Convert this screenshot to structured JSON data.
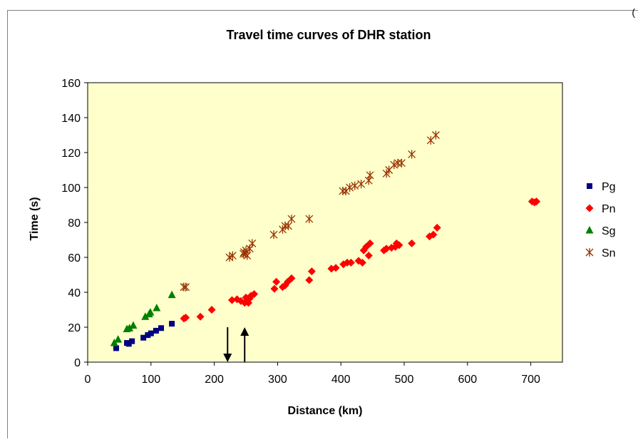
{
  "corner_mark": "(",
  "chart_data": {
    "type": "scatter",
    "title": "Travel time curves of DHR station",
    "xlabel": "Distance (km)",
    "ylabel": "Time (s)",
    "xlim": [
      0,
      750
    ],
    "ylim": [
      0,
      160
    ],
    "xticks": [
      0,
      100,
      200,
      300,
      400,
      500,
      600,
      700
    ],
    "yticks": [
      0,
      20,
      40,
      60,
      80,
      100,
      120,
      140,
      160
    ],
    "plot_background": "#ffffcc",
    "legend_position": "right",
    "arrows": [
      {
        "direction": "down",
        "x": 221,
        "y_from": 20,
        "y_to": 0
      },
      {
        "direction": "up",
        "x": 248,
        "y_from": 0,
        "y_to": 20
      }
    ],
    "series": [
      {
        "name": "Pg",
        "marker": "square",
        "color": "#000080",
        "points": [
          [
            45,
            8
          ],
          [
            62,
            11
          ],
          [
            65,
            10.5
          ],
          [
            70,
            12
          ],
          [
            88,
            14
          ],
          [
            95,
            15.5
          ],
          [
            100,
            16.5
          ],
          [
            108,
            18
          ],
          [
            116,
            19.5
          ],
          [
            133,
            22
          ]
        ]
      },
      {
        "name": "Pn",
        "marker": "diamond",
        "color": "#ff0000",
        "points": [
          [
            152,
            25
          ],
          [
            155,
            25.5
          ],
          [
            178,
            26
          ],
          [
            196,
            30
          ],
          [
            228,
            35.5
          ],
          [
            236,
            36
          ],
          [
            242,
            35
          ],
          [
            248,
            34
          ],
          [
            250,
            37
          ],
          [
            256,
            36.5
          ],
          [
            258,
            38
          ],
          [
            263,
            39
          ],
          [
            254,
            34
          ],
          [
            295,
            42
          ],
          [
            298,
            46
          ],
          [
            308,
            43
          ],
          [
            312,
            44
          ],
          [
            316,
            46
          ],
          [
            322,
            48
          ],
          [
            350,
            47
          ],
          [
            354,
            52
          ],
          [
            385,
            53.5
          ],
          [
            392,
            54
          ],
          [
            404,
            56
          ],
          [
            410,
            57
          ],
          [
            416,
            57
          ],
          [
            428,
            58
          ],
          [
            434,
            57
          ],
          [
            436,
            64
          ],
          [
            440,
            66
          ],
          [
            446,
            68
          ],
          [
            444,
            61
          ],
          [
            468,
            64
          ],
          [
            472,
            65
          ],
          [
            480,
            65.5
          ],
          [
            486,
            66
          ],
          [
            488,
            68
          ],
          [
            492,
            67
          ],
          [
            512,
            68
          ],
          [
            540,
            72
          ],
          [
            546,
            73
          ],
          [
            552,
            77
          ],
          [
            702,
            92
          ],
          [
            706,
            91.5
          ],
          [
            709,
            92
          ]
        ]
      },
      {
        "name": "Sg",
        "marker": "triangle",
        "color": "#008000",
        "points": [
          [
            42,
            11
          ],
          [
            48,
            13
          ],
          [
            62,
            19
          ],
          [
            66,
            19.5
          ],
          [
            72,
            21
          ],
          [
            91,
            26
          ],
          [
            97,
            27.5
          ],
          [
            99,
            28.5
          ],
          [
            109,
            31
          ],
          [
            133,
            38.5
          ]
        ]
      },
      {
        "name": "Sn",
        "marker": "star",
        "color": "#993300",
        "points": [
          [
            152,
            43
          ],
          [
            155,
            43
          ],
          [
            224,
            60
          ],
          [
            229,
            61
          ],
          [
            246,
            62
          ],
          [
            247,
            63
          ],
          [
            249,
            62
          ],
          [
            250,
            64
          ],
          [
            252,
            61
          ],
          [
            256,
            65
          ],
          [
            260,
            68
          ],
          [
            294,
            73
          ],
          [
            308,
            76
          ],
          [
            312,
            78
          ],
          [
            317,
            78
          ],
          [
            322,
            82
          ],
          [
            350,
            82
          ],
          [
            403,
            98
          ],
          [
            408,
            98
          ],
          [
            414,
            100
          ],
          [
            422,
            101
          ],
          [
            432,
            102
          ],
          [
            444,
            104
          ],
          [
            446,
            107
          ],
          [
            472,
            108
          ],
          [
            476,
            110
          ],
          [
            484,
            113
          ],
          [
            490,
            114
          ],
          [
            496,
            114
          ],
          [
            512,
            119
          ],
          [
            542,
            127
          ],
          [
            550,
            130
          ]
        ]
      }
    ]
  }
}
